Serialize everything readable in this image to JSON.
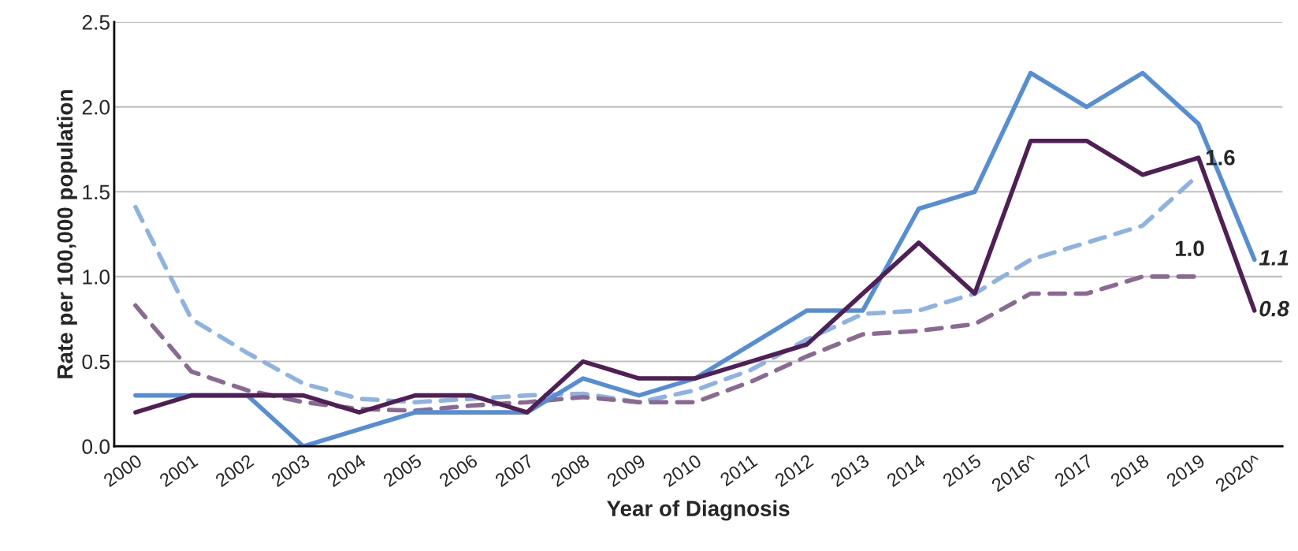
{
  "chart_data": {
    "type": "line",
    "xlabel": "Year of Diagnosis",
    "ylabel": "Rate per 100,000 population",
    "categories": [
      "2000",
      "2001",
      "2002",
      "2003",
      "2004",
      "2005",
      "2006",
      "2007",
      "2008",
      "2009",
      "2010",
      "2011",
      "2012",
      "2013",
      "2014",
      "2015",
      "2016^",
      "2017",
      "2018",
      "2019",
      "2020^"
    ],
    "series": [
      {
        "color": "#8db3e2",
        "line_style": "dashed",
        "values": [
          1.41,
          0.75,
          0.55,
          0.37,
          0.28,
          0.26,
          0.28,
          0.3,
          0.31,
          0.26,
          0.33,
          0.45,
          0.63,
          0.78,
          0.8,
          0.9,
          1.1,
          1.2,
          1.3,
          1.6,
          null
        ],
        "value_labels": [
          null,
          null,
          null,
          null,
          null,
          null,
          null,
          null,
          null,
          null,
          null,
          null,
          null,
          null,
          null,
          null,
          null,
          null,
          null,
          "1.6",
          null
        ]
      },
      {
        "color": "#8a6a93",
        "line_style": "dashed",
        "values": [
          0.83,
          0.44,
          0.33,
          0.26,
          0.22,
          0.21,
          0.24,
          0.26,
          0.29,
          0.26,
          0.26,
          0.38,
          0.53,
          0.66,
          0.68,
          0.72,
          0.9,
          0.9,
          1.0,
          1.0,
          null
        ],
        "value_labels": [
          null,
          null,
          null,
          null,
          null,
          null,
          null,
          null,
          null,
          null,
          null,
          null,
          null,
          null,
          null,
          null,
          null,
          null,
          null,
          "1.0",
          null
        ]
      },
      {
        "color": "#558ed5",
        "line_style": "solid",
        "values": [
          0.3,
          0.3,
          0.3,
          0.0,
          0.1,
          0.2,
          0.2,
          0.2,
          0.4,
          0.3,
          0.4,
          0.6,
          0.8,
          0.8,
          1.4,
          1.5,
          2.2,
          2.0,
          2.2,
          1.9,
          1.1
        ],
        "value_labels": [
          null,
          null,
          null,
          null,
          null,
          null,
          null,
          null,
          null,
          null,
          null,
          null,
          null,
          null,
          null,
          null,
          null,
          null,
          null,
          null,
          "1.1"
        ]
      },
      {
        "color": "#4f1f55",
        "line_style": "solid",
        "values": [
          0.2,
          0.3,
          0.3,
          0.3,
          0.2,
          0.3,
          0.3,
          0.2,
          0.5,
          0.4,
          0.4,
          0.5,
          0.6,
          0.9,
          1.2,
          0.9,
          1.8,
          1.8,
          1.6,
          1.7,
          0.8
        ],
        "value_labels": [
          null,
          null,
          null,
          null,
          null,
          null,
          null,
          null,
          null,
          null,
          null,
          null,
          null,
          null,
          null,
          null,
          null,
          null,
          null,
          null,
          "0.8"
        ]
      }
    ],
    "ylim": [
      0,
      2.5
    ],
    "yticks": [
      {
        "value": 0,
        "label": "0.0"
      },
      {
        "value": 0.5,
        "label": "0.5"
      },
      {
        "value": 1,
        "label": "1.0"
      },
      {
        "value": 1.5,
        "label": "1.5"
      },
      {
        "value": 2,
        "label": "2.0"
      },
      {
        "value": 2.5,
        "label": "2.5"
      }
    ],
    "grid": "y",
    "marker": "none"
  }
}
